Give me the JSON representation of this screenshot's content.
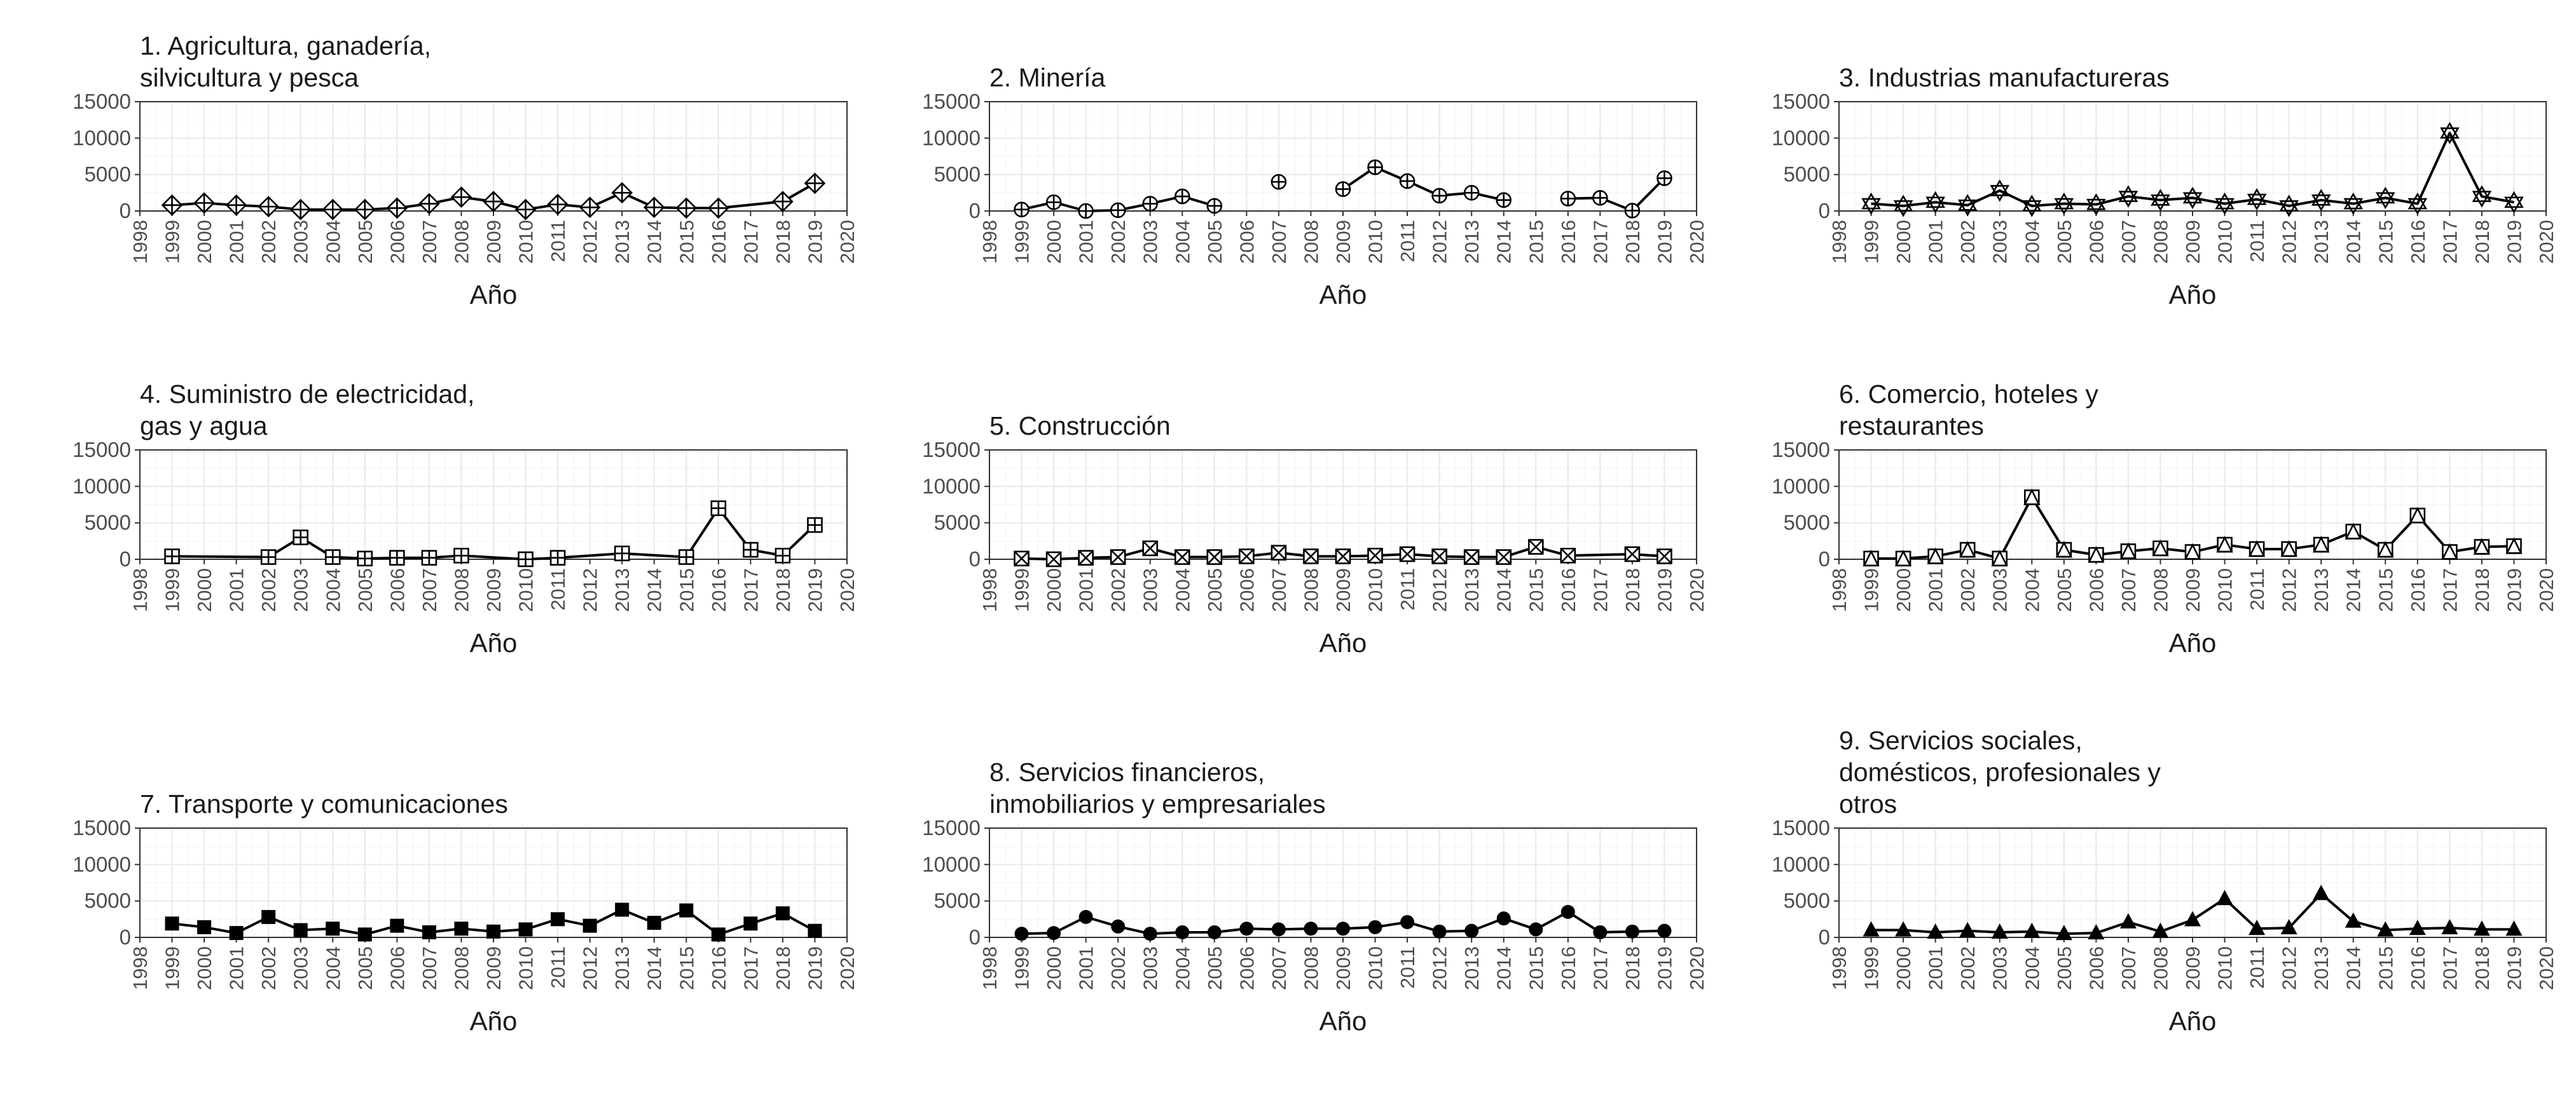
{
  "chart_data": [
    {
      "type": "line",
      "title": [
        "1. Agricultura, ganadería,",
        "silvicultura y pesca"
      ],
      "xlabel": "Año",
      "ylabel": "",
      "xlim": [
        1998,
        2020
      ],
      "ylim": [
        0,
        15000
      ],
      "yticks": [
        "0",
        "5000",
        "10000",
        "15000"
      ],
      "xticks": [
        "1998",
        "1999",
        "2000",
        "2001",
        "2002",
        "2003",
        "2004",
        "2005",
        "2006",
        "2007",
        "2008",
        "2009",
        "2010",
        "2011",
        "2012",
        "2013",
        "2014",
        "2015",
        "2016",
        "2017",
        "2018",
        "2019",
        "2020"
      ],
      "marker": "diamond-plus",
      "grid": true,
      "x": [
        1999,
        2000,
        2001,
        2002,
        2003,
        2004,
        2005,
        2006,
        2007,
        2008,
        2009,
        2010,
        2011,
        2012,
        2013,
        2014,
        2015,
        2016,
        2018,
        2019
      ],
      "y": [
        800,
        1100,
        800,
        600,
        200,
        200,
        200,
        400,
        1000,
        1900,
        1300,
        200,
        900,
        500,
        2500,
        500,
        400,
        400,
        1300,
        3800
      ]
    },
    {
      "type": "line",
      "title": [
        "2. Minería"
      ],
      "xlabel": "Año",
      "ylabel": "",
      "xlim": [
        1998,
        2020
      ],
      "ylim": [
        0,
        15000
      ],
      "yticks": [
        "0",
        "5000",
        "10000",
        "15000"
      ],
      "xticks": [
        "1998",
        "1999",
        "2000",
        "2001",
        "2002",
        "2003",
        "2004",
        "2005",
        "2006",
        "2007",
        "2008",
        "2009",
        "2010",
        "2011",
        "2012",
        "2013",
        "2014",
        "2015",
        "2016",
        "2017",
        "2018",
        "2019",
        "2020"
      ],
      "marker": "circle-plus",
      "grid": true,
      "x": [
        1999,
        2000,
        2001,
        2002,
        2003,
        2004,
        2005,
        2007,
        2009,
        2010,
        2011,
        2012,
        2013,
        2014,
        2016,
        2017,
        2018,
        2019
      ],
      "y": [
        200,
        1200,
        0,
        100,
        1000,
        2000,
        700,
        4000,
        3000,
        6000,
        4100,
        2100,
        2500,
        1500,
        1700,
        1800,
        50,
        4500
      ],
      "segments": [
        [
          0,
          6
        ],
        [
          8,
          13
        ],
        [
          14,
          17
        ]
      ]
    },
    {
      "type": "line",
      "title": [
        "3. Industrias manufactureras"
      ],
      "xlabel": "Año",
      "ylabel": "",
      "xlim": [
        1998,
        2020
      ],
      "ylim": [
        0,
        15000
      ],
      "yticks": [
        "0",
        "5000",
        "10000",
        "15000"
      ],
      "xticks": [
        "1998",
        "1999",
        "2000",
        "2001",
        "2002",
        "2003",
        "2004",
        "2005",
        "2006",
        "2007",
        "2008",
        "2009",
        "2010",
        "2011",
        "2012",
        "2013",
        "2014",
        "2015",
        "2016",
        "2017",
        "2018",
        "2019",
        "2020"
      ],
      "marker": "star-of-david",
      "grid": true,
      "x": [
        1999,
        2000,
        2001,
        2002,
        2003,
        2004,
        2005,
        2006,
        2007,
        2008,
        2009,
        2010,
        2011,
        2012,
        2013,
        2014,
        2015,
        2016,
        2017,
        2018,
        2019
      ],
      "y": [
        1000,
        700,
        1200,
        800,
        2800,
        700,
        1000,
        900,
        2000,
        1500,
        1800,
        1000,
        1600,
        700,
        1500,
        1000,
        1800,
        1000,
        10700,
        2000,
        1200
      ]
    },
    {
      "type": "line",
      "title": [
        "4. Suministro de electricidad,",
        "gas y agua"
      ],
      "xlabel": "Año",
      "ylabel": "",
      "xlim": [
        1998,
        2020
      ],
      "ylim": [
        0,
        15000
      ],
      "yticks": [
        "0",
        "5000",
        "10000",
        "15000"
      ],
      "xticks": [
        "1998",
        "1999",
        "2000",
        "2001",
        "2002",
        "2003",
        "2004",
        "2005",
        "2006",
        "2007",
        "2008",
        "2009",
        "2010",
        "2011",
        "2012",
        "2013",
        "2014",
        "2015",
        "2016",
        "2017",
        "2018",
        "2019",
        "2020"
      ],
      "marker": "square-plus",
      "grid": true,
      "x": [
        1999,
        2002,
        2003,
        2004,
        2005,
        2006,
        2007,
        2008,
        2010,
        2011,
        2013,
        2015,
        2016,
        2017,
        2018,
        2019
      ],
      "y": [
        400,
        300,
        3000,
        300,
        100,
        200,
        200,
        500,
        0,
        200,
        800,
        300,
        7000,
        1300,
        500,
        4700
      ]
    },
    {
      "type": "line",
      "title": [
        "5. Construcción"
      ],
      "xlabel": "Año",
      "ylabel": "",
      "xlim": [
        1998,
        2020
      ],
      "ylim": [
        0,
        15000
      ],
      "yticks": [
        "0",
        "5000",
        "10000",
        "15000"
      ],
      "xticks": [
        "1998",
        "1999",
        "2000",
        "2001",
        "2002",
        "2003",
        "2004",
        "2005",
        "2006",
        "2007",
        "2008",
        "2009",
        "2010",
        "2011",
        "2012",
        "2013",
        "2014",
        "2015",
        "2016",
        "2017",
        "2018",
        "2019",
        "2020"
      ],
      "marker": "square-x",
      "grid": true,
      "x": [
        1999,
        2000,
        2001,
        2002,
        2003,
        2004,
        2005,
        2006,
        2007,
        2008,
        2009,
        2010,
        2011,
        2012,
        2013,
        2014,
        2015,
        2016,
        2018,
        2019
      ],
      "y": [
        100,
        0,
        200,
        300,
        1500,
        300,
        300,
        400,
        900,
        400,
        400,
        500,
        700,
        400,
        300,
        300,
        1700,
        500,
        700,
        400
      ]
    },
    {
      "type": "line",
      "title": [
        "6. Comercio, hoteles y",
        "restaurantes"
      ],
      "xlabel": "Año",
      "ylabel": "",
      "xlim": [
        1998,
        2020
      ],
      "ylim": [
        0,
        15000
      ],
      "yticks": [
        "0",
        "5000",
        "10000",
        "15000"
      ],
      "xticks": [
        "1998",
        "1999",
        "2000",
        "2001",
        "2002",
        "2003",
        "2004",
        "2005",
        "2006",
        "2007",
        "2008",
        "2009",
        "2010",
        "2011",
        "2012",
        "2013",
        "2014",
        "2015",
        "2016",
        "2017",
        "2018",
        "2019",
        "2020"
      ],
      "marker": "square-triangle",
      "grid": true,
      "x": [
        1999,
        2000,
        2001,
        2002,
        2003,
        2004,
        2005,
        2006,
        2007,
        2008,
        2009,
        2010,
        2011,
        2012,
        2013,
        2014,
        2015,
        2016,
        2017,
        2018,
        2019
      ],
      "y": [
        100,
        100,
        400,
        1300,
        100,
        8500,
        1300,
        600,
        1100,
        1500,
        1000,
        2000,
        1400,
        1400,
        2000,
        3800,
        1300,
        6000,
        1000,
        1700,
        1800
      ]
    },
    {
      "type": "line",
      "title": [
        "7. Transporte y comunicaciones"
      ],
      "xlabel": "Año",
      "ylabel": "",
      "xlim": [
        1998,
        2020
      ],
      "ylim": [
        0,
        15000
      ],
      "yticks": [
        "0",
        "5000",
        "10000",
        "15000"
      ],
      "xticks": [
        "1998",
        "1999",
        "2000",
        "2001",
        "2002",
        "2003",
        "2004",
        "2005",
        "2006",
        "2007",
        "2008",
        "2009",
        "2010",
        "2011",
        "2012",
        "2013",
        "2014",
        "2015",
        "2016",
        "2017",
        "2018",
        "2019",
        "2020"
      ],
      "marker": "filled-square",
      "grid": true,
      "x": [
        1999,
        2000,
        2001,
        2002,
        2003,
        2004,
        2005,
        2006,
        2007,
        2008,
        2009,
        2010,
        2011,
        2012,
        2013,
        2014,
        2015,
        2016,
        2017,
        2018,
        2019
      ],
      "y": [
        1900,
        1400,
        600,
        2800,
        1000,
        1200,
        400,
        1600,
        700,
        1200,
        800,
        1100,
        2500,
        1600,
        3800,
        2000,
        3700,
        400,
        1900,
        3300,
        900
      ]
    },
    {
      "type": "line",
      "title": [
        "8. Servicios financieros,",
        "inmobiliarios y empresariales"
      ],
      "xlabel": "Año",
      "ylabel": "",
      "xlim": [
        1998,
        2020
      ],
      "ylim": [
        0,
        15000
      ],
      "yticks": [
        "0",
        "5000",
        "10000",
        "15000"
      ],
      "xticks": [
        "1998",
        "1999",
        "2000",
        "2001",
        "2002",
        "2003",
        "2004",
        "2005",
        "2006",
        "2007",
        "2008",
        "2009",
        "2010",
        "2011",
        "2012",
        "2013",
        "2014",
        "2015",
        "2016",
        "2017",
        "2018",
        "2019",
        "2020"
      ],
      "marker": "filled-circle",
      "grid": true,
      "x": [
        1999,
        2000,
        2001,
        2002,
        2003,
        2004,
        2005,
        2006,
        2007,
        2008,
        2009,
        2010,
        2011,
        2012,
        2013,
        2014,
        2015,
        2016,
        2017,
        2018,
        2019
      ],
      "y": [
        500,
        600,
        2800,
        1500,
        500,
        700,
        700,
        1200,
        1100,
        1200,
        1200,
        1400,
        2100,
        800,
        900,
        2600,
        1100,
        3500,
        700,
        800,
        900
      ]
    },
    {
      "type": "line",
      "title": [
        "9. Servicios sociales,",
        "domésticos, profesionales y",
        "otros"
      ],
      "xlabel": "Año",
      "ylabel": "",
      "xlim": [
        1998,
        2020
      ],
      "ylim": [
        0,
        15000
      ],
      "yticks": [
        "0",
        "5000",
        "10000",
        "15000"
      ],
      "xticks": [
        "1998",
        "1999",
        "2000",
        "2001",
        "2002",
        "2003",
        "2004",
        "2005",
        "2006",
        "2007",
        "2008",
        "2009",
        "2010",
        "2011",
        "2012",
        "2013",
        "2014",
        "2015",
        "2016",
        "2017",
        "2018",
        "2019",
        "2020"
      ],
      "marker": "filled-triangle",
      "grid": true,
      "x": [
        1999,
        2000,
        2001,
        2002,
        2003,
        2004,
        2005,
        2006,
        2007,
        2008,
        2009,
        2010,
        2011,
        2012,
        2013,
        2014,
        2015,
        2016,
        2017,
        2018,
        2019
      ],
      "y": [
        1000,
        1000,
        700,
        900,
        700,
        800,
        500,
        600,
        2100,
        800,
        2400,
        5300,
        1200,
        1300,
        6000,
        2200,
        1000,
        1200,
        1300,
        1100,
        1100
      ]
    }
  ]
}
